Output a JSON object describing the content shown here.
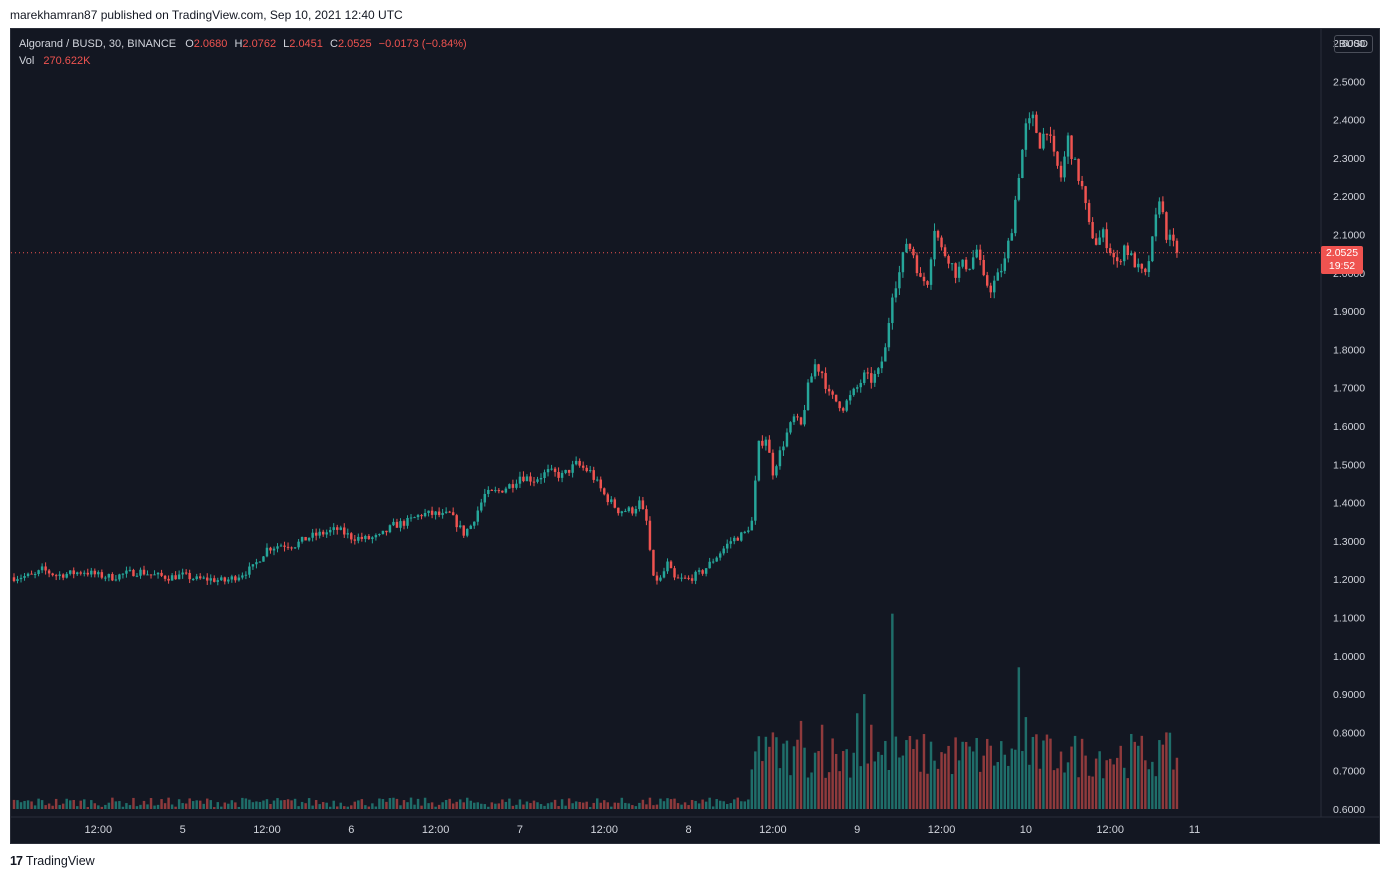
{
  "header": {
    "publish_line": "marekhamran87 published on TradingView.com, Sep 10, 2021 12:40 UTC"
  },
  "legend": {
    "symbol": "Algorand / BUSD, 30, BINANCE",
    "o_label": "O",
    "o_value": "2.0680",
    "h_label": "H",
    "h_value": "2.0762",
    "l_label": "L",
    "l_value": "2.0451",
    "c_label": "C",
    "c_value": "2.0525",
    "change": "−0.0173 (−0.84%)",
    "vol_label": "Vol",
    "vol_value": "270.622K"
  },
  "currency": "BUSD",
  "last_price": {
    "price": "2.0525",
    "countdown": "19:52"
  },
  "footer": {
    "brand": "TradingView",
    "mark": "17"
  },
  "colors": {
    "background": "#131722",
    "up": "#26a69a",
    "down": "#ef5350",
    "volume_up": "#1f6e6a",
    "volume_down": "#8f3a3c",
    "axis_text": "#d1d4dc",
    "price_line": "#ef5350"
  },
  "chart_data": {
    "type": "candlestick",
    "title": "Algorand / BUSD, 30, BINANCE",
    "y_axis": {
      "ylim": [
        0.6,
        2.6
      ],
      "ticks": [
        "2.6000",
        "2.5000",
        "2.4000",
        "2.3000",
        "2.2000",
        "2.1000",
        "2.0000",
        "1.9000",
        "1.8000",
        "1.7000",
        "1.6000",
        "1.5000",
        "1.4000",
        "1.3000",
        "1.2000",
        "1.1000",
        "1.0000",
        "0.9000",
        "0.8000",
        "0.7000",
        "0.6000"
      ]
    },
    "x_axis": {
      "ticks": [
        {
          "label": "12:00",
          "t": 12
        },
        {
          "label": "5",
          "t": 24
        },
        {
          "label": "12:00",
          "t": 36
        },
        {
          "label": "6",
          "t": 48
        },
        {
          "label": "12:00",
          "t": 60
        },
        {
          "label": "7",
          "t": 72
        },
        {
          "label": "12:00",
          "t": 84
        },
        {
          "label": "8",
          "t": 96
        },
        {
          "label": "12:00",
          "t": 108
        },
        {
          "label": "9",
          "t": 120
        },
        {
          "label": "12:00",
          "t": 132
        },
        {
          "label": "10",
          "t": 144
        },
        {
          "label": "12:00",
          "t": 156
        },
        {
          "label": "11",
          "t": 168
        }
      ],
      "t_unit": "hours since Sep 4 00:00"
    },
    "anchors": [
      [
        0,
        1.205
      ],
      [
        3,
        1.21
      ],
      [
        4,
        1.225
      ],
      [
        6,
        1.21
      ],
      [
        8,
        1.215
      ],
      [
        10,
        1.22
      ],
      [
        12,
        1.21
      ],
      [
        14,
        1.205
      ],
      [
        16,
        1.215
      ],
      [
        18,
        1.22
      ],
      [
        20,
        1.21
      ],
      [
        22,
        1.205
      ],
      [
        24,
        1.21
      ],
      [
        26,
        1.2
      ],
      [
        28,
        1.2
      ],
      [
        30,
        1.195
      ],
      [
        32,
        1.21
      ],
      [
        34,
        1.23
      ],
      [
        36,
        1.28
      ],
      [
        38,
        1.29
      ],
      [
        40,
        1.29
      ],
      [
        42,
        1.31
      ],
      [
        44,
        1.32
      ],
      [
        46,
        1.33
      ],
      [
        48,
        1.31
      ],
      [
        50,
        1.305
      ],
      [
        52,
        1.31
      ],
      [
        54,
        1.34
      ],
      [
        56,
        1.35
      ],
      [
        58,
        1.37
      ],
      [
        60,
        1.37
      ],
      [
        61,
        1.365
      ],
      [
        62,
        1.37
      ],
      [
        64,
        1.32
      ],
      [
        65,
        1.34
      ],
      [
        66,
        1.38
      ],
      [
        67,
        1.42
      ],
      [
        69,
        1.43
      ],
      [
        71,
        1.45
      ],
      [
        72,
        1.47
      ],
      [
        74,
        1.46
      ],
      [
        76,
        1.48
      ],
      [
        78,
        1.47
      ],
      [
        80,
        1.5
      ],
      [
        82,
        1.48
      ],
      [
        83,
        1.45
      ],
      [
        84,
        1.42
      ],
      [
        86,
        1.38
      ],
      [
        88,
        1.38
      ],
      [
        89,
        1.4
      ],
      [
        90,
        1.35
      ],
      [
        91,
        1.2
      ],
      [
        92,
        1.2
      ],
      [
        93,
        1.24
      ],
      [
        94,
        1.2
      ],
      [
        96,
        1.2
      ],
      [
        98,
        1.22
      ],
      [
        100,
        1.26
      ],
      [
        102,
        1.3
      ],
      [
        104,
        1.32
      ],
      [
        105,
        1.35
      ],
      [
        106,
        1.55
      ],
      [
        107,
        1.57
      ],
      [
        108,
        1.48
      ],
      [
        110,
        1.58
      ],
      [
        111,
        1.62
      ],
      [
        112,
        1.6
      ],
      [
        113,
        1.7
      ],
      [
        114,
        1.76
      ],
      [
        115,
        1.74
      ],
      [
        116,
        1.68
      ],
      [
        118,
        1.65
      ],
      [
        120,
        1.7
      ],
      [
        121,
        1.73
      ],
      [
        122,
        1.72
      ],
      [
        123,
        1.74
      ],
      [
        124,
        1.8
      ],
      [
        125,
        1.95
      ],
      [
        126,
        2.0
      ],
      [
        127,
        2.08
      ],
      [
        128,
        2.05
      ],
      [
        129,
        1.98
      ],
      [
        130,
        1.98
      ],
      [
        131,
        2.12
      ],
      [
        132,
        2.06
      ],
      [
        133,
        2.04
      ],
      [
        134,
        2.0
      ],
      [
        135,
        2.02
      ],
      [
        136,
        2.02
      ],
      [
        137,
        2.06
      ],
      [
        138,
        1.98
      ],
      [
        139,
        1.96
      ],
      [
        140,
        1.99
      ],
      [
        141,
        2.03
      ],
      [
        142,
        2.12
      ],
      [
        143,
        2.26
      ],
      [
        144,
        2.38
      ],
      [
        145,
        2.4
      ],
      [
        146,
        2.34
      ],
      [
        147,
        2.38
      ],
      [
        148,
        2.3
      ],
      [
        149,
        2.25
      ],
      [
        150,
        2.35
      ],
      [
        151,
        2.28
      ],
      [
        152,
        2.22
      ],
      [
        153,
        2.12
      ],
      [
        154,
        2.08
      ],
      [
        155,
        2.1
      ],
      [
        156,
        2.06
      ],
      [
        157,
        2.02
      ],
      [
        158,
        2.07
      ],
      [
        159,
        2.04
      ],
      [
        160,
        2.01
      ],
      [
        161,
        1.99
      ],
      [
        162,
        2.08
      ],
      [
        163,
        2.2
      ],
      [
        164,
        2.1
      ],
      [
        165,
        2.07
      ],
      [
        165.5,
        2.0525
      ]
    ],
    "volume_spikes": [
      {
        "t": 106,
        "v": 0.79
      },
      {
        "t": 108,
        "v": 0.8
      },
      {
        "t": 112,
        "v": 0.83
      },
      {
        "t": 115,
        "v": 0.82
      },
      {
        "t": 120,
        "v": 0.85
      },
      {
        "t": 121,
        "v": 0.9
      },
      {
        "t": 122,
        "v": 0.82
      },
      {
        "t": 125,
        "v": 1.11
      },
      {
        "t": 127,
        "v": 0.78
      },
      {
        "t": 143,
        "v": 0.97
      },
      {
        "t": 144,
        "v": 0.84
      },
      {
        "t": 149,
        "v": 0.75
      },
      {
        "t": 163,
        "v": 0.78
      }
    ],
    "last_value": 2.0525
  }
}
